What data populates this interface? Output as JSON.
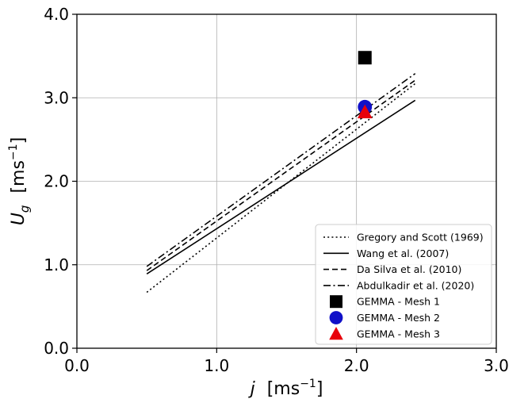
{
  "chart_data": {
    "type": "line",
    "xlabel": "j  [ms⁻¹]",
    "xlabel_parts": {
      "symbol": "j",
      "unit_open": "[ms",
      "unit_exp": "−1",
      "unit_close": "]"
    },
    "ylabel": "U_g  [ms⁻¹]",
    "ylabel_parts": {
      "symbol": "U",
      "sub": "g",
      "unit_open": "[ms",
      "unit_exp": "−1",
      "unit_close": "]"
    },
    "xlim": [
      0.0,
      3.0
    ],
    "ylim": [
      0.0,
      4.0
    ],
    "x_ticks": [
      0.0,
      1.0,
      2.0,
      3.0
    ],
    "x_tick_labels": [
      "0.0",
      "1.0",
      "2.0",
      "3.0"
    ],
    "y_ticks": [
      0.0,
      1.0,
      2.0,
      3.0,
      4.0
    ],
    "y_tick_labels": [
      "0.0",
      "1.0",
      "2.0",
      "3.0",
      "4.0"
    ],
    "grid": true,
    "legend_position": "lower-right",
    "series": [
      {
        "name": "Gregory and Scott (1969)",
        "style": "dotted",
        "color": "#000000",
        "x": [
          0.5,
          2.42
        ],
        "y": [
          0.67,
          3.17
        ]
      },
      {
        "name": "Wang et al. (2007)",
        "style": "solid",
        "color": "#000000",
        "x": [
          0.5,
          2.42
        ],
        "y": [
          0.89,
          2.97
        ]
      },
      {
        "name": "Da Silva et al. (2010)",
        "style": "dashed",
        "color": "#000000",
        "x": [
          0.5,
          2.42
        ],
        "y": [
          0.93,
          3.21
        ]
      },
      {
        "name": "Abdulkadir et al. (2020)",
        "style": "dashdot",
        "color": "#000000",
        "x": [
          0.5,
          2.42
        ],
        "y": [
          0.98,
          3.29
        ]
      }
    ],
    "points": [
      {
        "name": "GEMMA - Mesh 1",
        "marker": "square",
        "color": "#000000",
        "x": 2.06,
        "y": 3.48
      },
      {
        "name": "GEMMA - Mesh 2",
        "marker": "circle",
        "color": "#1010c8",
        "x": 2.06,
        "y": 2.89
      },
      {
        "name": "GEMMA - Mesh 3",
        "marker": "triangle",
        "color": "#e8000b",
        "x": 2.06,
        "y": 2.83
      }
    ]
  }
}
